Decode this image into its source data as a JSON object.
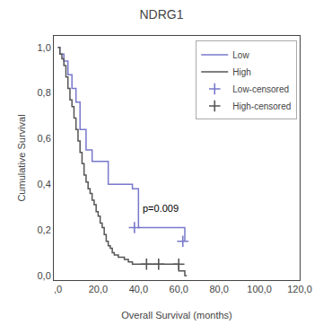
{
  "chart_data": {
    "type": "line",
    "title": "NDRG1",
    "x_label": "Overall Survival (months)",
    "y_label": "Cumulative Survival",
    "xlim": [
      -2,
      120
    ],
    "ylim": [
      -0.02,
      1.05
    ],
    "xticks": [
      {
        "value": 0,
        "label": ",0"
      },
      {
        "value": 20,
        "label": "20,0"
      },
      {
        "value": 40,
        "label": "40,0"
      },
      {
        "value": 60,
        "label": "60,0"
      },
      {
        "value": 80,
        "label": "80,0"
      },
      {
        "value": 100,
        "label": "100,0"
      },
      {
        "value": 120,
        "label": "120,0"
      }
    ],
    "yticks": [
      {
        "value": 0.0,
        "label": "0,0"
      },
      {
        "value": 0.2,
        "label": "0,2"
      },
      {
        "value": 0.4,
        "label": "0,4"
      },
      {
        "value": 0.6,
        "label": "0,6"
      },
      {
        "value": 0.8,
        "label": "0,8"
      },
      {
        "value": 1.0,
        "label": "1,0"
      }
    ],
    "grid": false,
    "legend": "upper right",
    "series": [
      {
        "name": "Low",
        "color": "#7878cc",
        "line_style": "step",
        "x": [
          0,
          1,
          3,
          5,
          7,
          9,
          11,
          14,
          17,
          20,
          25,
          30,
          37,
          40,
          62,
          63
        ],
        "values": [
          1.0,
          0.97,
          0.94,
          0.88,
          0.82,
          0.76,
          0.64,
          0.55,
          0.5,
          0.5,
          0.4,
          0.4,
          0.38,
          0.21,
          0.21,
          0.15
        ]
      },
      {
        "name": "High",
        "color": "#555555",
        "line_style": "step",
        "x": [
          0,
          1,
          2,
          3,
          4,
          5,
          6,
          7,
          8,
          9,
          10,
          11,
          12,
          13,
          14,
          15,
          16,
          17,
          18,
          19,
          20,
          21,
          22,
          23,
          24,
          25,
          26,
          27,
          28,
          30,
          33,
          35,
          37,
          40,
          44,
          50,
          60,
          63,
          64
        ],
        "values": [
          1.0,
          0.97,
          0.95,
          0.92,
          0.87,
          0.82,
          0.77,
          0.74,
          0.69,
          0.64,
          0.59,
          0.54,
          0.49,
          0.44,
          0.41,
          0.38,
          0.36,
          0.33,
          0.31,
          0.28,
          0.26,
          0.23,
          0.21,
          0.18,
          0.15,
          0.13,
          0.12,
          0.1,
          0.09,
          0.08,
          0.07,
          0.06,
          0.05,
          0.05,
          0.05,
          0.05,
          0.02,
          0.0,
          0.0
        ]
      },
      {
        "name": "Low-censored",
        "color": "#7878cc",
        "type": "scatter",
        "marker": "+",
        "x": [
          38,
          62
        ],
        "values": [
          0.21,
          0.15
        ]
      },
      {
        "name": "High-censored",
        "color": "#555555",
        "type": "scatter",
        "marker": "+",
        "x": [
          44,
          50,
          60
        ],
        "values": [
          0.05,
          0.05,
          0.05
        ]
      }
    ],
    "annotations": [
      {
        "text": "p=0.009",
        "x": 41,
        "y": 0.265
      }
    ]
  }
}
